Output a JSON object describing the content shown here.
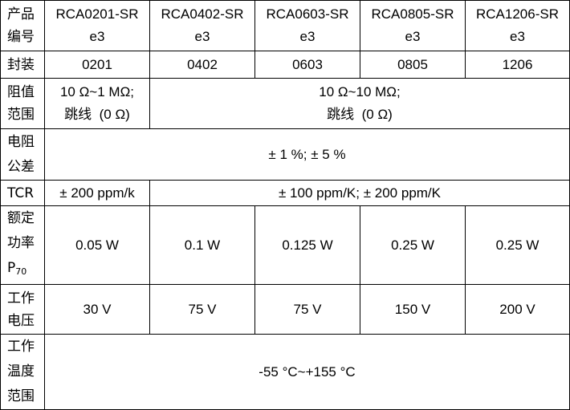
{
  "header": {
    "label": [
      "产品",
      "编号"
    ],
    "models": [
      {
        "name": "RCA0201-SR",
        "suffix": "e3"
      },
      {
        "name": "RCA0402-SR",
        "suffix": "e3"
      },
      {
        "name": "RCA0603-SR",
        "suffix": "e3"
      },
      {
        "name": "RCA0805-SR",
        "suffix": "e3"
      },
      {
        "name": "RCA1206-SR",
        "suffix": "e3"
      }
    ]
  },
  "package": {
    "label": "封装",
    "values": [
      "0201",
      "0402",
      "0603",
      "0805",
      "1206"
    ]
  },
  "resistance_range": {
    "label": [
      "阻值",
      "范围"
    ],
    "first": [
      "10 Ω~1 MΩ;",
      "跳线  (0 Ω)"
    ],
    "others": [
      "10 Ω~10 MΩ;",
      "跳线  (0 Ω)"
    ]
  },
  "tolerance": {
    "label": [
      "电阻",
      "公差"
    ],
    "value": "± 1 %; ± 5 %"
  },
  "tcr": {
    "label": "TCR",
    "first": "± 200 ppm/k",
    "others": "± 100 ppm/K; ± 200 ppm/K"
  },
  "rated_power": {
    "label": [
      "额定",
      "功率"
    ],
    "label_symbol": "P",
    "label_subscript": "70",
    "values": [
      "0.05 W",
      "0.1 W",
      "0.125 W",
      "0.25 W",
      "0.25 W"
    ]
  },
  "voltage": {
    "label": [
      "工作",
      "电压"
    ],
    "values": [
      "30 V",
      "75 V",
      "75 V",
      "150 V",
      "200 V"
    ]
  },
  "temperature": {
    "label": [
      "工作",
      "温度",
      "范围"
    ],
    "value": "-55 °C~+155 °C"
  }
}
